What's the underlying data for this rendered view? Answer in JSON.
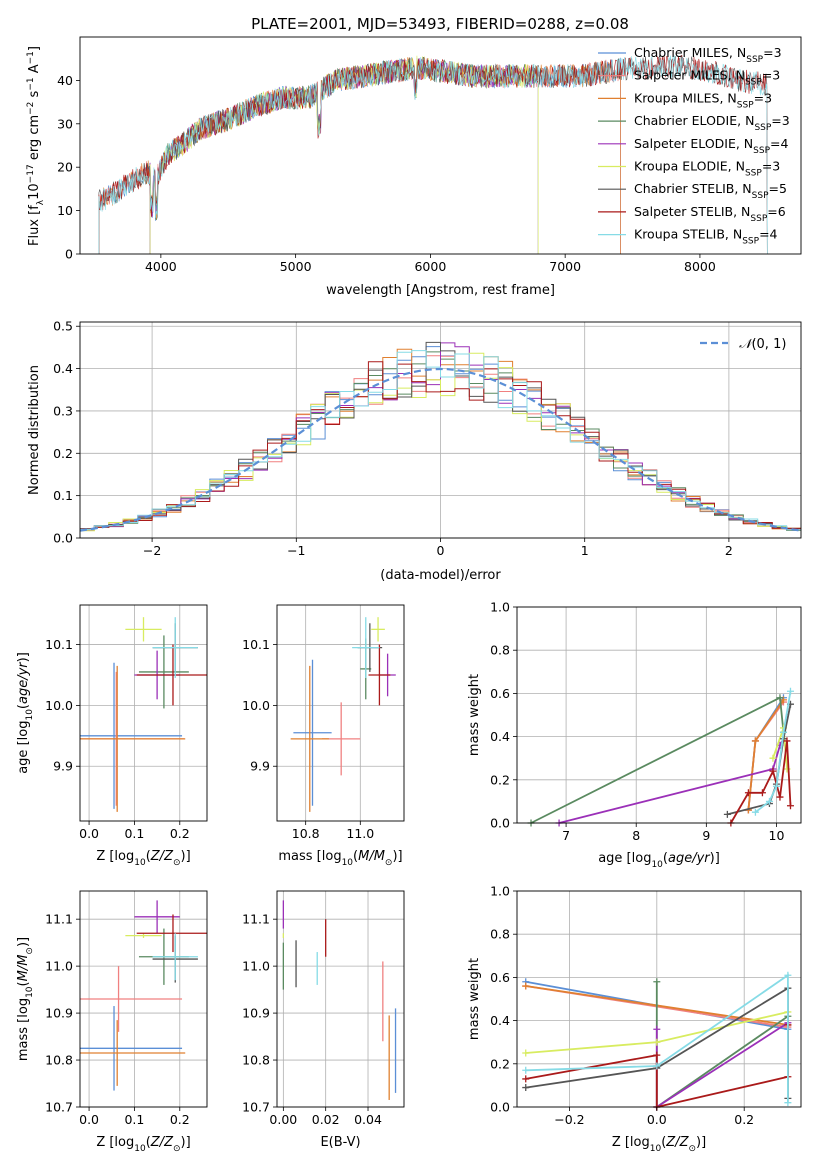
{
  "figure": {
    "title": "PLATE=2001, MJD=53493, FIBERID=0288, z=0.08"
  },
  "colors": {
    "Chabrier MILES": "#5b8fd6",
    "Salpeter MILES": "#f08080",
    "Kroupa MILES": "#e08030",
    "Chabrier ELODIE": "#5a8a60",
    "Salpeter ELODIE": "#9b30b8",
    "Kroupa ELODIE": "#d8ec60",
    "Chabrier STELIB": "#555555",
    "Salpeter STELIB": "#aa1a1a",
    "Kroupa STELIB": "#86dbe6"
  },
  "chart_data": [
    {
      "id": "spectrum",
      "type": "line",
      "title": "PLATE=2001, MJD=53493, FIBERID=0288, z=0.08",
      "xlabel": "wavelength [Angstrom, rest frame]",
      "ylabel": "Flux [f_λ 10^-17 erg cm^-2 s^-1 A^-1]",
      "xlim": [
        3400,
        8750
      ],
      "ylim": [
        0,
        50
      ],
      "xticks": [
        4000,
        5000,
        6000,
        7000,
        8000
      ],
      "yticks": [
        0,
        10,
        20,
        30,
        40
      ],
      "grid": false,
      "legend_position": "upper-right",
      "legend": [
        "Chabrier MILES, N_SSP=3",
        "Salpeter MILES, N_SSP=3",
        "Kroupa MILES, N_SSP=3",
        "Chabrier ELODIE, N_SSP=3",
        "Salpeter ELODIE, N_SSP=4",
        "Kroupa ELODIE, N_SSP=3",
        "Chabrier STELIB, N_SSP=5",
        "Salpeter STELIB, N_SSP=6",
        "Kroupa STELIB, N_SSP=4"
      ],
      "continuum_x": [
        3530,
        3600,
        3700,
        3800,
        3900,
        3960,
        4050,
        4150,
        4300,
        4500,
        4700,
        4900,
        5100,
        5300,
        5500,
        5700,
        5900,
        6100,
        6300,
        6500,
        6700,
        6900,
        7100,
        7300,
        7500,
        7700,
        7900,
        8100,
        8300,
        8500
      ],
      "continuum_y": [
        12,
        13,
        15,
        17,
        19,
        17,
        23,
        25,
        29,
        31,
        34,
        36,
        36,
        40,
        41,
        42,
        43,
        42,
        41,
        41,
        41,
        41,
        41,
        42,
        43,
        43,
        43,
        42,
        40,
        39
      ],
      "series_wavelength_ranges": [
        {
          "name": "Chabrier MILES",
          "x": [
            3540,
            7410
          ]
        },
        {
          "name": "Salpeter MILES",
          "x": [
            3540,
            7410
          ]
        },
        {
          "name": "Kroupa MILES",
          "x": [
            3540,
            7410
          ]
        },
        {
          "name": "Chabrier ELODIE",
          "x": [
            3920,
            6800
          ]
        },
        {
          "name": "Salpeter ELODIE",
          "x": [
            3920,
            6800
          ]
        },
        {
          "name": "Kroupa ELODIE",
          "x": [
            3920,
            6800
          ]
        },
        {
          "name": "Chabrier STELIB",
          "x": [
            3540,
            8500
          ]
        },
        {
          "name": "Salpeter STELIB",
          "x": [
            3540,
            8500
          ]
        },
        {
          "name": "Kroupa STELIB",
          "x": [
            3540,
            8500
          ]
        }
      ]
    },
    {
      "id": "residuals",
      "type": "bar",
      "xlabel": "(data-model)/error",
      "ylabel": "Normed distribution",
      "xlim": [
        -2.5,
        2.5
      ],
      "ylim": [
        0,
        0.51
      ],
      "xticks": [
        -2,
        -1,
        0,
        1,
        2
      ],
      "yticks": [
        0.0,
        0.1,
        0.2,
        0.3,
        0.4,
        0.5
      ],
      "grid": true,
      "legend": [
        "N(0,1)"
      ],
      "legend_position": "upper-right",
      "bin_width": 0.1,
      "reference_curve": "normal distribution, mean 0, sigma 1"
    },
    {
      "id": "age_vs_Z",
      "type": "scatter",
      "xlabel": "Z [log10(Z/Z_sun)]",
      "ylabel": "age [log10(age/yr)]",
      "xlim": [
        -0.02,
        0.26
      ],
      "ylim": [
        9.81,
        10.165
      ],
      "xticks": [
        0.0,
        0.1,
        0.2
      ],
      "yticks": [
        9.9,
        10.0,
        10.1
      ],
      "grid": true,
      "points": [
        {
          "series": "Chabrier MILES",
          "x": 0.055,
          "xerr": 0.15,
          "y": 9.95,
          "yerr": 0.12
        },
        {
          "series": "Salpeter MILES",
          "x": 0.06,
          "xerr": 0.15,
          "y": 9.945,
          "yerr": 0.11
        },
        {
          "series": "Kroupa MILES",
          "x": 0.062,
          "xerr": 0.15,
          "y": 9.945,
          "yerr": 0.12
        },
        {
          "series": "Chabrier ELODIE",
          "x": 0.165,
          "xerr": 0.055,
          "y": 10.055,
          "yerr": 0.06
        },
        {
          "series": "Salpeter ELODIE",
          "x": 0.15,
          "xerr": 0.05,
          "y": 10.05,
          "yerr": 0.04
        },
        {
          "series": "Kroupa ELODIE",
          "x": 0.12,
          "xerr": 0.04,
          "y": 10.125,
          "yerr": 0.02
        },
        {
          "series": "Chabrier STELIB",
          "x": 0.19,
          "xerr": 0.05,
          "y": 10.095,
          "yerr": 0.04
        },
        {
          "series": "Salpeter STELIB",
          "x": 0.185,
          "xerr": 0.08,
          "y": 10.05,
          "yerr": 0.05
        },
        {
          "series": "Kroupa STELIB",
          "x": 0.19,
          "xerr": 0.05,
          "y": 10.095,
          "yerr": 0.05
        }
      ]
    },
    {
      "id": "age_vs_mass",
      "type": "scatter",
      "xlabel": "mass [log10(M/M_sun)]",
      "ylabel": "",
      "xlim": [
        10.695,
        11.16
      ],
      "ylim": [
        9.81,
        10.165
      ],
      "xticks": [
        10.8,
        11.0
      ],
      "yticks": [
        9.9,
        10.0,
        10.1
      ],
      "grid": true,
      "points": [
        {
          "series": "Chabrier MILES",
          "x": 10.825,
          "xerr": 0.07,
          "y": 9.955,
          "yerr": 0.12
        },
        {
          "series": "Salpeter MILES",
          "x": 10.93,
          "xerr": 0.07,
          "y": 9.945,
          "yerr": 0.06
        },
        {
          "series": "Kroupa MILES",
          "x": 10.815,
          "xerr": 0.07,
          "y": 9.945,
          "yerr": 0.12
        },
        {
          "series": "Chabrier ELODIE",
          "x": 11.02,
          "xerr": 0.02,
          "y": 10.06,
          "yerr": 0.05
        },
        {
          "series": "Salpeter ELODIE",
          "x": 11.1,
          "xerr": 0.03,
          "y": 10.05,
          "yerr": 0.035
        },
        {
          "series": "Kroupa ELODIE",
          "x": 11.065,
          "xerr": 0.025,
          "y": 10.125,
          "yerr": 0.02
        },
        {
          "series": "Chabrier STELIB",
          "x": 11.035,
          "xerr": 0.045,
          "y": 10.095,
          "yerr": 0.04
        },
        {
          "series": "Salpeter STELIB",
          "x": 11.07,
          "xerr": 0.04,
          "y": 10.05,
          "yerr": 0.05
        },
        {
          "series": "Kroupa STELIB",
          "x": 11.02,
          "xerr": 0.05,
          "y": 10.095,
          "yerr": 0.05
        }
      ]
    },
    {
      "id": "weight_vs_age",
      "type": "line",
      "xlabel": "age [log10(age/yr)]",
      "ylabel": "mass weight",
      "xlim": [
        6.3,
        10.35
      ],
      "ylim": [
        0,
        1
      ],
      "xticks": [
        7,
        8,
        9,
        10
      ],
      "yticks": [
        0.0,
        0.2,
        0.4,
        0.6,
        0.8,
        1.0
      ],
      "grid": true,
      "series": [
        {
          "name": "Chabrier MILES",
          "x": [
            9.6,
            9.7,
            10.1
          ],
          "y": [
            0.06,
            0.38,
            0.58
          ]
        },
        {
          "name": "Salpeter MILES",
          "x": [
            9.6,
            9.7,
            10.1
          ],
          "y": [
            0.06,
            0.38,
            0.56
          ]
        },
        {
          "name": "Kroupa MILES",
          "x": [
            9.6,
            9.7,
            10.1
          ],
          "y": [
            0.06,
            0.38,
            0.57
          ]
        },
        {
          "name": "Chabrier ELODIE",
          "x": [
            6.5,
            10.05,
            10.1
          ],
          "y": [
            0.0,
            0.58,
            0.42
          ]
        },
        {
          "name": "Salpeter ELODIE",
          "x": [
            6.9,
            9.95,
            10.05,
            10.1
          ],
          "y": [
            0.0,
            0.25,
            0.36,
            0.39
          ]
        },
        {
          "name": "Kroupa ELODIE",
          "x": [
            9.95,
            10.1,
            10.15
          ],
          "y": [
            0.3,
            0.44,
            0.25
          ]
        },
        {
          "name": "Chabrier STELIB",
          "x": [
            9.3,
            9.9,
            10.0,
            10.1,
            10.2
          ],
          "y": [
            0.04,
            0.09,
            0.18,
            0.39,
            0.55
          ]
        },
        {
          "name": "Salpeter STELIB",
          "x": [
            9.35,
            9.6,
            9.8,
            9.95,
            10.05,
            10.15,
            10.2
          ],
          "y": [
            0.0,
            0.14,
            0.14,
            0.24,
            0.12,
            0.38,
            0.08
          ]
        },
        {
          "name": "Kroupa STELIB",
          "x": [
            9.7,
            9.9,
            10.0,
            10.1,
            10.2
          ],
          "y": [
            0.05,
            0.1,
            0.17,
            0.42,
            0.61
          ]
        }
      ]
    },
    {
      "id": "mass_vs_Z",
      "type": "scatter",
      "xlabel": "Z [log10(Z/Z_sun)]",
      "ylabel": "mass [log10(M/M_sun)]",
      "xlim": [
        -0.02,
        0.26
      ],
      "ylim": [
        10.7,
        11.16
      ],
      "xticks": [
        0.0,
        0.1,
        0.2
      ],
      "yticks": [
        10.7,
        10.8,
        10.9,
        11.0,
        11.1
      ],
      "grid": true,
      "points": [
        {
          "series": "Chabrier MILES",
          "x": 0.055,
          "xerr": 0.15,
          "y": 10.825,
          "yerr": 0.09
        },
        {
          "series": "Salpeter MILES",
          "x": 0.065,
          "xerr": 0.14,
          "y": 10.93,
          "yerr": 0.07
        },
        {
          "series": "Kroupa MILES",
          "x": 0.062,
          "xerr": 0.15,
          "y": 10.815,
          "yerr": 0.07
        },
        {
          "series": "Chabrier ELODIE",
          "x": 0.165,
          "xerr": 0.055,
          "y": 11.02,
          "yerr": 0.06
        },
        {
          "series": "Salpeter ELODIE",
          "x": 0.15,
          "xerr": 0.05,
          "y": 11.105,
          "yerr": 0.035
        },
        {
          "series": "Kroupa ELODIE",
          "x": 0.12,
          "xerr": 0.04,
          "y": 11.065,
          "yerr": 0.005
        },
        {
          "series": "Chabrier STELIB",
          "x": 0.19,
          "xerr": 0.05,
          "y": 11.015,
          "yerr": 0.05
        },
        {
          "series": "Salpeter STELIB",
          "x": 0.185,
          "xerr": 0.08,
          "y": 11.07,
          "yerr": 0.04
        },
        {
          "series": "Kroupa STELIB",
          "x": 0.19,
          "xerr": 0.05,
          "y": 11.02,
          "yerr": 0.05
        }
      ]
    },
    {
      "id": "mass_vs_ebv",
      "type": "scatter",
      "xlabel": "E(B-V)",
      "ylabel": "",
      "xlim": [
        -0.003,
        0.057
      ],
      "ylim": [
        10.7,
        11.16
      ],
      "xticks": [
        0.0,
        0.02,
        0.04
      ],
      "yticks": [
        10.7,
        10.8,
        10.9,
        11.0,
        11.1
      ],
      "grid": true,
      "points": [
        {
          "series": "Chabrier MILES",
          "x": 0.053,
          "y": 10.82,
          "yerr": 0.09
        },
        {
          "series": "Salpeter MILES",
          "x": 0.047,
          "y": 10.925,
          "yerr": 0.085
        },
        {
          "series": "Kroupa MILES",
          "x": 0.05,
          "y": 10.805,
          "yerr": 0.09
        },
        {
          "series": "Chabrier ELODIE",
          "x": 0.0,
          "y": 11.0,
          "yerr": 0.05
        },
        {
          "series": "Salpeter ELODIE",
          "x": 0.0,
          "y": 11.11,
          "yerr": 0.03
        },
        {
          "series": "Kroupa ELODIE",
          "x": 0.0,
          "y": 11.065,
          "yerr": 0.005
        },
        {
          "series": "Chabrier STELIB",
          "x": 0.006,
          "y": 11.005,
          "yerr": 0.05
        },
        {
          "series": "Salpeter STELIB",
          "x": 0.02,
          "y": 11.06,
          "yerr": 0.04
        },
        {
          "series": "Kroupa STELIB",
          "x": 0.016,
          "y": 10.995,
          "yerr": 0.035
        }
      ]
    },
    {
      "id": "weight_vs_Z",
      "type": "line",
      "xlabel": "Z [log10(Z/Z_sun)]",
      "ylabel": "mass weight",
      "xlim": [
        -0.32,
        0.33
      ],
      "ylim": [
        0,
        1
      ],
      "xticks": [
        -0.2,
        0.0,
        0.2
      ],
      "yticks": [
        0.0,
        0.2,
        0.4,
        0.6,
        0.8,
        1.0
      ],
      "grid": true,
      "series": [
        {
          "name": "Chabrier MILES",
          "x": [
            -0.3,
            0.3
          ],
          "y": [
            0.58,
            0.36
          ]
        },
        {
          "name": "Salpeter MILES",
          "x": [
            -0.3,
            0.3
          ],
          "y": [
            0.56,
            0.37
          ]
        },
        {
          "name": "Kroupa MILES",
          "x": [
            -0.3,
            0.3
          ],
          "y": [
            0.56,
            0.38
          ]
        },
        {
          "name": "Chabrier ELODIE",
          "x": [
            0.0,
            0.0,
            0.3
          ],
          "y": [
            0.58,
            0.0,
            0.42
          ]
        },
        {
          "name": "Salpeter ELODIE",
          "x": [
            0.0,
            0.0,
            0.3
          ],
          "y": [
            0.36,
            0.0,
            0.39
          ]
        },
        {
          "name": "Kroupa ELODIE",
          "x": [
            -0.3,
            0.0,
            0.3
          ],
          "y": [
            0.25,
            0.3,
            0.44
          ]
        },
        {
          "name": "Chabrier STELIB",
          "x": [
            -0.3,
            0.0,
            0.3,
            0.3
          ],
          "y": [
            0.09,
            0.18,
            0.55,
            0.04
          ]
        },
        {
          "name": "Salpeter STELIB",
          "x": [
            -0.3,
            0.0,
            0.0,
            0.3,
            0.3
          ],
          "y": [
            0.13,
            0.24,
            0.0,
            0.14,
            0.38
          ]
        },
        {
          "name": "Kroupa STELIB",
          "x": [
            -0.3,
            0.0,
            0.3,
            0.3
          ],
          "y": [
            0.17,
            0.19,
            0.61,
            0.02
          ]
        }
      ]
    }
  ]
}
